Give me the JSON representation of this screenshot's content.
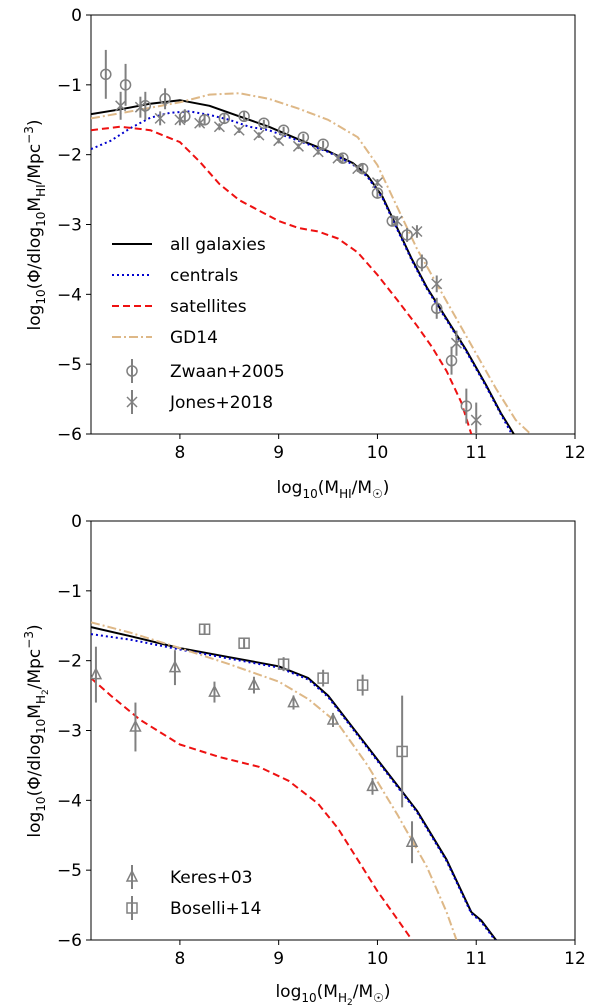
{
  "chart_data": [
    {
      "type": "line",
      "xlabel_main": "log",
      "xlabel_sub": "10",
      "xlabel_rest": "(M",
      "xlabel_sub2": "HI",
      "xlabel_end": "/M",
      "xlabel_sun": "☉",
      "xlabel_close": ")",
      "ylabel": "log10(Φ/dlog10MHI/Mpc−3)",
      "xlim": [
        7.1,
        12
      ],
      "ylim": [
        -6,
        0
      ],
      "xticks": [
        8,
        9,
        10,
        11,
        12
      ],
      "yticks": [
        0,
        -1,
        -2,
        -3,
        -4,
        -5,
        -6
      ],
      "xtick_labels": [
        "8",
        "9",
        "10",
        "11",
        "12"
      ],
      "ytick_labels": [
        "0",
        "−1",
        "−2",
        "−3",
        "−4",
        "−5",
        "−6"
      ],
      "legend_position": "lower-left",
      "series": [
        {
          "name": "all galaxies",
          "color": "#000000",
          "style": "solid",
          "x": [
            7.1,
            7.4,
            7.7,
            8.0,
            8.3,
            8.6,
            8.9,
            9.2,
            9.5,
            9.75,
            9.9,
            10.05,
            10.2,
            10.35,
            10.5,
            10.7,
            10.9,
            11.1,
            11.25,
            11.38
          ],
          "y": [
            -1.42,
            -1.35,
            -1.27,
            -1.22,
            -1.3,
            -1.45,
            -1.6,
            -1.78,
            -1.95,
            -2.12,
            -2.3,
            -2.6,
            -3.05,
            -3.5,
            -3.9,
            -4.35,
            -4.8,
            -5.3,
            -5.7,
            -6.0
          ]
        },
        {
          "name": "centrals",
          "color": "#0000cd",
          "style": "dotted",
          "x": [
            7.1,
            7.3,
            7.5,
            7.7,
            7.9,
            8.1,
            8.3,
            8.5,
            8.7,
            8.9,
            9.2,
            9.5,
            9.75,
            9.9,
            10.05,
            10.2,
            10.35,
            10.5,
            10.7,
            10.9,
            11.1,
            11.25,
            11.36
          ],
          "y": [
            -1.92,
            -1.8,
            -1.62,
            -1.47,
            -1.4,
            -1.38,
            -1.43,
            -1.5,
            -1.6,
            -1.65,
            -1.8,
            -1.96,
            -2.14,
            -2.32,
            -2.62,
            -3.07,
            -3.52,
            -3.92,
            -4.37,
            -4.82,
            -5.32,
            -5.72,
            -6.0
          ]
        },
        {
          "name": "satellites",
          "color": "#ee1111",
          "style": "dashed",
          "x": [
            7.1,
            7.4,
            7.7,
            8.0,
            8.2,
            8.4,
            8.6,
            8.8,
            9.0,
            9.2,
            9.4,
            9.6,
            9.8,
            10.0,
            10.2,
            10.4,
            10.55,
            10.7,
            10.85,
            10.95
          ],
          "y": [
            -1.65,
            -1.6,
            -1.65,
            -1.82,
            -2.1,
            -2.42,
            -2.65,
            -2.8,
            -2.95,
            -3.05,
            -3.1,
            -3.2,
            -3.4,
            -3.72,
            -4.08,
            -4.45,
            -4.75,
            -5.1,
            -5.55,
            -6.0
          ]
        },
        {
          "name": "GD14",
          "color": "#deb887",
          "style": "dashdot",
          "x": [
            7.1,
            7.5,
            8.0,
            8.3,
            8.6,
            8.9,
            9.2,
            9.5,
            9.8,
            10.0,
            10.2,
            10.4,
            10.6,
            10.8,
            11.0,
            11.2,
            11.4,
            11.55
          ],
          "y": [
            -1.48,
            -1.38,
            -1.25,
            -1.14,
            -1.12,
            -1.2,
            -1.34,
            -1.5,
            -1.75,
            -2.15,
            -2.75,
            -3.35,
            -3.85,
            -4.35,
            -4.85,
            -5.35,
            -5.8,
            -6.0
          ]
        }
      ],
      "observations": [
        {
          "name": "Zwaan+2005",
          "marker": "circle",
          "color": "#808080",
          "x": [
            7.25,
            7.45,
            7.65,
            7.85,
            8.05,
            8.25,
            8.45,
            8.65,
            8.85,
            9.05,
            9.25,
            9.45,
            9.65,
            9.85,
            10.0,
            10.15,
            10.3,
            10.45,
            10.6,
            10.75,
            10.9
          ],
          "y": [
            -0.85,
            -1.0,
            -1.3,
            -1.2,
            -1.45,
            -1.5,
            -1.48,
            -1.45,
            -1.55,
            -1.65,
            -1.75,
            -1.85,
            -2.05,
            -2.2,
            -2.55,
            -2.95,
            -3.15,
            -3.55,
            -4.2,
            -4.95,
            -5.6
          ],
          "yerr": [
            0.35,
            0.3,
            0.2,
            0.15,
            0.1,
            0.08,
            0.07,
            0.06,
            0.05,
            0.05,
            0.05,
            0.05,
            0.05,
            0.06,
            0.07,
            0.08,
            0.1,
            0.12,
            0.15,
            0.2,
            0.25
          ]
        },
        {
          "name": "Jones+2018",
          "marker": "x",
          "color": "#808080",
          "x": [
            7.4,
            7.6,
            7.8,
            8.0,
            8.2,
            8.4,
            8.6,
            8.8,
            9.0,
            9.2,
            9.4,
            9.6,
            9.8,
            10.0,
            10.2,
            10.4,
            10.6,
            10.8,
            11.0
          ],
          "y": [
            -1.3,
            -1.32,
            -1.48,
            -1.5,
            -1.55,
            -1.6,
            -1.65,
            -1.72,
            -1.8,
            -1.88,
            -1.96,
            -2.05,
            -2.2,
            -2.4,
            -2.95,
            -3.1,
            -3.85,
            -4.7,
            -5.8
          ],
          "yerr": [
            0.2,
            0.15,
            0.1,
            0.08,
            0.06,
            0.05,
            0.04,
            0.04,
            0.04,
            0.04,
            0.04,
            0.04,
            0.05,
            0.05,
            0.07,
            0.09,
            0.12,
            0.18,
            0.25
          ]
        }
      ]
    },
    {
      "type": "line",
      "xlabel_main": "log",
      "xlabel_sub": "10",
      "xlabel_rest": "(M",
      "xlabel_sub2": "H",
      "xlabel_sub3": "2",
      "xlabel_end": "/M",
      "xlabel_sun": "☉",
      "xlabel_close": ")",
      "ylabel": "log10(Φ/dlog10MH2/Mpc−3)",
      "xlim": [
        7.1,
        12
      ],
      "ylim": [
        -6,
        0
      ],
      "xticks": [
        8,
        9,
        10,
        11,
        12
      ],
      "yticks": [
        0,
        -1,
        -2,
        -3,
        -4,
        -5,
        -6
      ],
      "xtick_labels": [
        "8",
        "9",
        "10",
        "11",
        "12"
      ],
      "ytick_labels": [
        "0",
        "−1",
        "−2",
        "−3",
        "−4",
        "−5",
        "−6"
      ],
      "legend_position": "lower-left",
      "series": [
        {
          "name": "all galaxies",
          "color": "#000000",
          "style": "solid",
          "x": [
            7.1,
            7.5,
            8.0,
            8.5,
            9.0,
            9.3,
            9.5,
            9.8,
            10.1,
            10.4,
            10.7,
            10.95,
            11.05,
            11.2
          ],
          "y": [
            -1.52,
            -1.65,
            -1.82,
            -1.95,
            -2.08,
            -2.25,
            -2.5,
            -3.05,
            -3.6,
            -4.15,
            -4.85,
            -5.6,
            -5.72,
            -6.0
          ]
        },
        {
          "name": "centrals",
          "color": "#0000cd",
          "style": "dotted",
          "x": [
            7.1,
            7.5,
            8.0,
            8.5,
            9.0,
            9.3,
            9.5,
            9.8,
            10.1,
            10.4,
            10.7,
            10.95,
            11.05,
            11.2
          ],
          "y": [
            -1.62,
            -1.7,
            -1.84,
            -1.97,
            -2.1,
            -2.27,
            -2.52,
            -3.07,
            -3.62,
            -4.17,
            -4.87,
            -5.62,
            -5.74,
            -6.02
          ]
        },
        {
          "name": "satellites",
          "color": "#ee1111",
          "style": "dashed",
          "x": [
            7.1,
            7.3,
            7.6,
            8.0,
            8.4,
            8.8,
            9.1,
            9.4,
            9.6,
            9.8,
            10.0,
            10.2,
            10.35
          ],
          "y": [
            -2.25,
            -2.5,
            -2.85,
            -3.2,
            -3.38,
            -3.52,
            -3.72,
            -4.05,
            -4.4,
            -4.85,
            -5.3,
            -5.7,
            -6.0
          ]
        },
        {
          "name": "GD14",
          "color": "#deb887",
          "style": "dashdot",
          "x": [
            7.1,
            7.5,
            8.0,
            8.5,
            9.0,
            9.3,
            9.6,
            9.9,
            10.2,
            10.5,
            10.7,
            10.8
          ],
          "y": [
            -1.45,
            -1.6,
            -1.82,
            -2.05,
            -2.3,
            -2.55,
            -2.9,
            -3.5,
            -4.2,
            -4.95,
            -5.6,
            -6.0
          ]
        }
      ],
      "observations": [
        {
          "name": "Keres+03",
          "marker": "triangle",
          "color": "#808080",
          "x": [
            7.15,
            7.55,
            7.95,
            8.35,
            8.75,
            9.15,
            9.55,
            9.95,
            10.35
          ],
          "y": [
            -2.2,
            -2.95,
            -2.1,
            -2.45,
            -2.35,
            -2.6,
            -2.85,
            -3.8,
            -4.6
          ],
          "yerr": [
            0.4,
            0.35,
            0.25,
            0.15,
            0.12,
            0.1,
            0.1,
            0.12,
            0.3
          ]
        },
        {
          "name": "Boselli+14",
          "marker": "square",
          "color": "#808080",
          "x": [
            8.25,
            8.65,
            9.05,
            9.45,
            9.85,
            10.25
          ],
          "y": [
            -1.55,
            -1.75,
            -2.05,
            -2.25,
            -2.35,
            -3.3
          ],
          "yerr": [
            0.07,
            0.08,
            0.1,
            0.12,
            0.15,
            0.8
          ]
        }
      ]
    }
  ]
}
